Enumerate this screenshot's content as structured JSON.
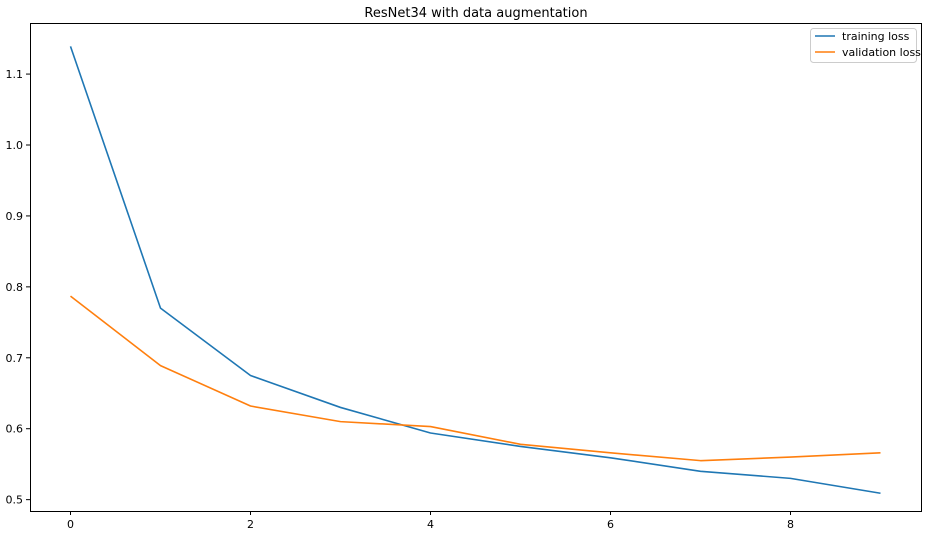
{
  "chart_data": {
    "type": "line",
    "title": "ResNet34 with data augmentation",
    "xlabel": "",
    "ylabel": "",
    "x": [
      0,
      1,
      2,
      3,
      4,
      5,
      6,
      7,
      8,
      9
    ],
    "xlim": [
      -0.45,
      9.45
    ],
    "ylim": [
      0.484,
      1.172
    ],
    "xticks": [
      0,
      2,
      4,
      6,
      8
    ],
    "yticks": [
      0.5,
      0.6,
      0.7,
      0.8,
      0.9,
      1.0,
      1.1
    ],
    "ytick_labels": [
      "0.5",
      "0.6",
      "0.7",
      "0.8",
      "0.9",
      "1.0",
      "1.1"
    ],
    "grid": false,
    "legend_position": "top-right",
    "series": [
      {
        "name": "training loss",
        "color": "#1f77b4",
        "values": [
          1.139,
          0.77,
          0.675,
          0.63,
          0.594,
          0.575,
          0.559,
          0.54,
          0.53,
          0.509
        ]
      },
      {
        "name": "validation loss",
        "color": "#ff7f0e",
        "values": [
          0.787,
          0.689,
          0.632,
          0.61,
          0.603,
          0.578,
          0.566,
          0.555,
          0.56,
          0.566
        ]
      }
    ]
  }
}
